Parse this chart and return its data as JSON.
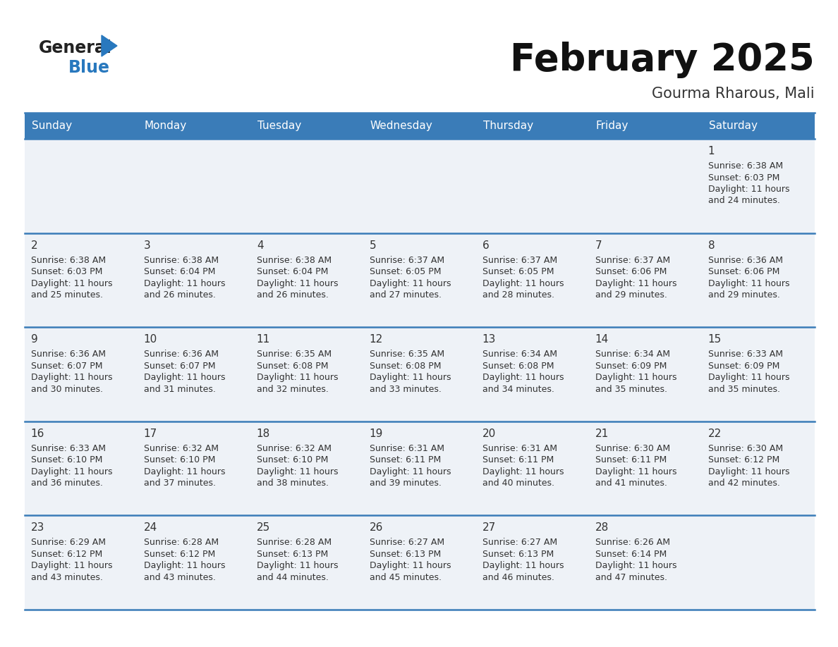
{
  "title": "February 2025",
  "subtitle": "Gourma Rharous, Mali",
  "days_of_week": [
    "Sunday",
    "Monday",
    "Tuesday",
    "Wednesday",
    "Thursday",
    "Friday",
    "Saturday"
  ],
  "header_bg": "#3a7cb8",
  "header_text": "#ffffff",
  "cell_bg": "#eef2f7",
  "text_color": "#333333",
  "line_color": "#3a7cb8",
  "calendar_data": [
    {
      "day": 1,
      "col": 6,
      "row": 0,
      "sunrise": "6:38 AM",
      "sunset": "6:03 PM",
      "daylight": "11 hours and 24 minutes."
    },
    {
      "day": 2,
      "col": 0,
      "row": 1,
      "sunrise": "6:38 AM",
      "sunset": "6:03 PM",
      "daylight": "11 hours and 25 minutes."
    },
    {
      "day": 3,
      "col": 1,
      "row": 1,
      "sunrise": "6:38 AM",
      "sunset": "6:04 PM",
      "daylight": "11 hours and 26 minutes."
    },
    {
      "day": 4,
      "col": 2,
      "row": 1,
      "sunrise": "6:38 AM",
      "sunset": "6:04 PM",
      "daylight": "11 hours and 26 minutes."
    },
    {
      "day": 5,
      "col": 3,
      "row": 1,
      "sunrise": "6:37 AM",
      "sunset": "6:05 PM",
      "daylight": "11 hours and 27 minutes."
    },
    {
      "day": 6,
      "col": 4,
      "row": 1,
      "sunrise": "6:37 AM",
      "sunset": "6:05 PM",
      "daylight": "11 hours and 28 minutes."
    },
    {
      "day": 7,
      "col": 5,
      "row": 1,
      "sunrise": "6:37 AM",
      "sunset": "6:06 PM",
      "daylight": "11 hours and 29 minutes."
    },
    {
      "day": 8,
      "col": 6,
      "row": 1,
      "sunrise": "6:36 AM",
      "sunset": "6:06 PM",
      "daylight": "11 hours and 29 minutes."
    },
    {
      "day": 9,
      "col": 0,
      "row": 2,
      "sunrise": "6:36 AM",
      "sunset": "6:07 PM",
      "daylight": "11 hours and 30 minutes."
    },
    {
      "day": 10,
      "col": 1,
      "row": 2,
      "sunrise": "6:36 AM",
      "sunset": "6:07 PM",
      "daylight": "11 hours and 31 minutes."
    },
    {
      "day": 11,
      "col": 2,
      "row": 2,
      "sunrise": "6:35 AM",
      "sunset": "6:08 PM",
      "daylight": "11 hours and 32 minutes."
    },
    {
      "day": 12,
      "col": 3,
      "row": 2,
      "sunrise": "6:35 AM",
      "sunset": "6:08 PM",
      "daylight": "11 hours and 33 minutes."
    },
    {
      "day": 13,
      "col": 4,
      "row": 2,
      "sunrise": "6:34 AM",
      "sunset": "6:08 PM",
      "daylight": "11 hours and 34 minutes."
    },
    {
      "day": 14,
      "col": 5,
      "row": 2,
      "sunrise": "6:34 AM",
      "sunset": "6:09 PM",
      "daylight": "11 hours and 35 minutes."
    },
    {
      "day": 15,
      "col": 6,
      "row": 2,
      "sunrise": "6:33 AM",
      "sunset": "6:09 PM",
      "daylight": "11 hours and 35 minutes."
    },
    {
      "day": 16,
      "col": 0,
      "row": 3,
      "sunrise": "6:33 AM",
      "sunset": "6:10 PM",
      "daylight": "11 hours and 36 minutes."
    },
    {
      "day": 17,
      "col": 1,
      "row": 3,
      "sunrise": "6:32 AM",
      "sunset": "6:10 PM",
      "daylight": "11 hours and 37 minutes."
    },
    {
      "day": 18,
      "col": 2,
      "row": 3,
      "sunrise": "6:32 AM",
      "sunset": "6:10 PM",
      "daylight": "11 hours and 38 minutes."
    },
    {
      "day": 19,
      "col": 3,
      "row": 3,
      "sunrise": "6:31 AM",
      "sunset": "6:11 PM",
      "daylight": "11 hours and 39 minutes."
    },
    {
      "day": 20,
      "col": 4,
      "row": 3,
      "sunrise": "6:31 AM",
      "sunset": "6:11 PM",
      "daylight": "11 hours and 40 minutes."
    },
    {
      "day": 21,
      "col": 5,
      "row": 3,
      "sunrise": "6:30 AM",
      "sunset": "6:11 PM",
      "daylight": "11 hours and 41 minutes."
    },
    {
      "day": 22,
      "col": 6,
      "row": 3,
      "sunrise": "6:30 AM",
      "sunset": "6:12 PM",
      "daylight": "11 hours and 42 minutes."
    },
    {
      "day": 23,
      "col": 0,
      "row": 4,
      "sunrise": "6:29 AM",
      "sunset": "6:12 PM",
      "daylight": "11 hours and 43 minutes."
    },
    {
      "day": 24,
      "col": 1,
      "row": 4,
      "sunrise": "6:28 AM",
      "sunset": "6:12 PM",
      "daylight": "11 hours and 43 minutes."
    },
    {
      "day": 25,
      "col": 2,
      "row": 4,
      "sunrise": "6:28 AM",
      "sunset": "6:13 PM",
      "daylight": "11 hours and 44 minutes."
    },
    {
      "day": 26,
      "col": 3,
      "row": 4,
      "sunrise": "6:27 AM",
      "sunset": "6:13 PM",
      "daylight": "11 hours and 45 minutes."
    },
    {
      "day": 27,
      "col": 4,
      "row": 4,
      "sunrise": "6:27 AM",
      "sunset": "6:13 PM",
      "daylight": "11 hours and 46 minutes."
    },
    {
      "day": 28,
      "col": 5,
      "row": 4,
      "sunrise": "6:26 AM",
      "sunset": "6:14 PM",
      "daylight": "11 hours and 47 minutes."
    }
  ],
  "num_rows": 5,
  "logo_general_color": "#222222",
  "logo_blue_color": "#2878be",
  "logo_triangle_color": "#2878be",
  "title_fontsize": 38,
  "subtitle_fontsize": 15,
  "header_fontsize": 11,
  "day_num_fontsize": 11,
  "cell_text_fontsize": 9
}
